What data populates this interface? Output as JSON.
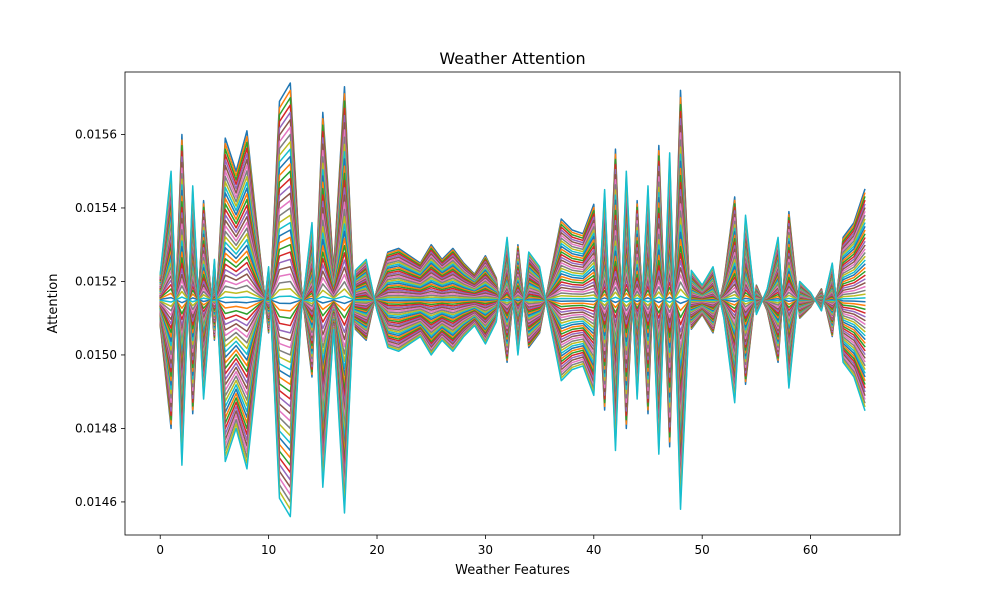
{
  "chart_data": {
    "type": "line",
    "title": "Weather Attention",
    "xlabel": "Weather Features",
    "ylabel": "Attention",
    "xlim": [
      -3.25,
      68.25
    ],
    "ylim": [
      0.01451,
      0.01577
    ],
    "x_ticks": [
      0,
      10,
      20,
      30,
      40,
      50,
      60
    ],
    "y_ticks": [
      0.0146,
      0.0148,
      0.015,
      0.0152,
      0.0154,
      0.0156
    ],
    "y_tick_labels": [
      "0.0146",
      "0.0148",
      "0.0150",
      "0.0152",
      "0.0154",
      "0.0156"
    ],
    "grid": false,
    "legend": "none",
    "baseline": 0.01515,
    "x": [
      0,
      1,
      2,
      3,
      4,
      5,
      6,
      7,
      8,
      9,
      10,
      11,
      12,
      13,
      14,
      15,
      16,
      17,
      18,
      19,
      20,
      21,
      22,
      23,
      24,
      25,
      26,
      27,
      28,
      29,
      30,
      31,
      32,
      33,
      34,
      35,
      36,
      37,
      38,
      39,
      40,
      41,
      42,
      43,
      44,
      45,
      46,
      47,
      48,
      49,
      50,
      51,
      52,
      53,
      54,
      55,
      56,
      57,
      58,
      59,
      60,
      61,
      62,
      63,
      64,
      65
    ],
    "series_count": 60,
    "series_note": "Each line is baseline + scale * profile, scale between -1.0 and 1.0 (60 evenly spaced scales)",
    "profile": [
      7e-05,
      0.00035,
      -0.00045,
      0.00031,
      -0.00027,
      0.00011,
      -0.00044,
      -0.00035,
      -0.00046,
      -0.00018,
      9e-05,
      -0.00054,
      -0.00059,
      -4e-05,
      0.00021,
      -0.00051,
      -8e-05,
      -0.00058,
      8e-05,
      0.00011,
      -3e-05,
      -0.00013,
      -0.00014,
      -0.00012,
      -0.0001,
      -0.00015,
      -0.00011,
      -0.00014,
      -0.0001,
      -7e-05,
      -0.00012,
      -6e-05,
      0.00017,
      -0.00015,
      0.00013,
      9e-05,
      -7e-05,
      -0.00022,
      -0.00019,
      -0.00018,
      -0.00026,
      0.0003,
      -0.00041,
      0.00035,
      -0.00027,
      0.00031,
      -0.00042,
      0.0004,
      -0.00057,
      8e-05,
      4e-05,
      9e-05,
      -5e-05,
      -0.00028,
      0.00023,
      -4e-05,
      3e-05,
      0.00017,
      -0.00024,
      5e-05,
      2e-05,
      -3e-05,
      0.0001,
      -0.00017,
      -0.00021,
      -0.0003
    ],
    "colors": [
      "#1f77b4",
      "#ff7f0e",
      "#2ca02c",
      "#d62728",
      "#9467bd",
      "#8c564b",
      "#e377c2",
      "#7f7f7f",
      "#bcbd22",
      "#17becf"
    ]
  }
}
